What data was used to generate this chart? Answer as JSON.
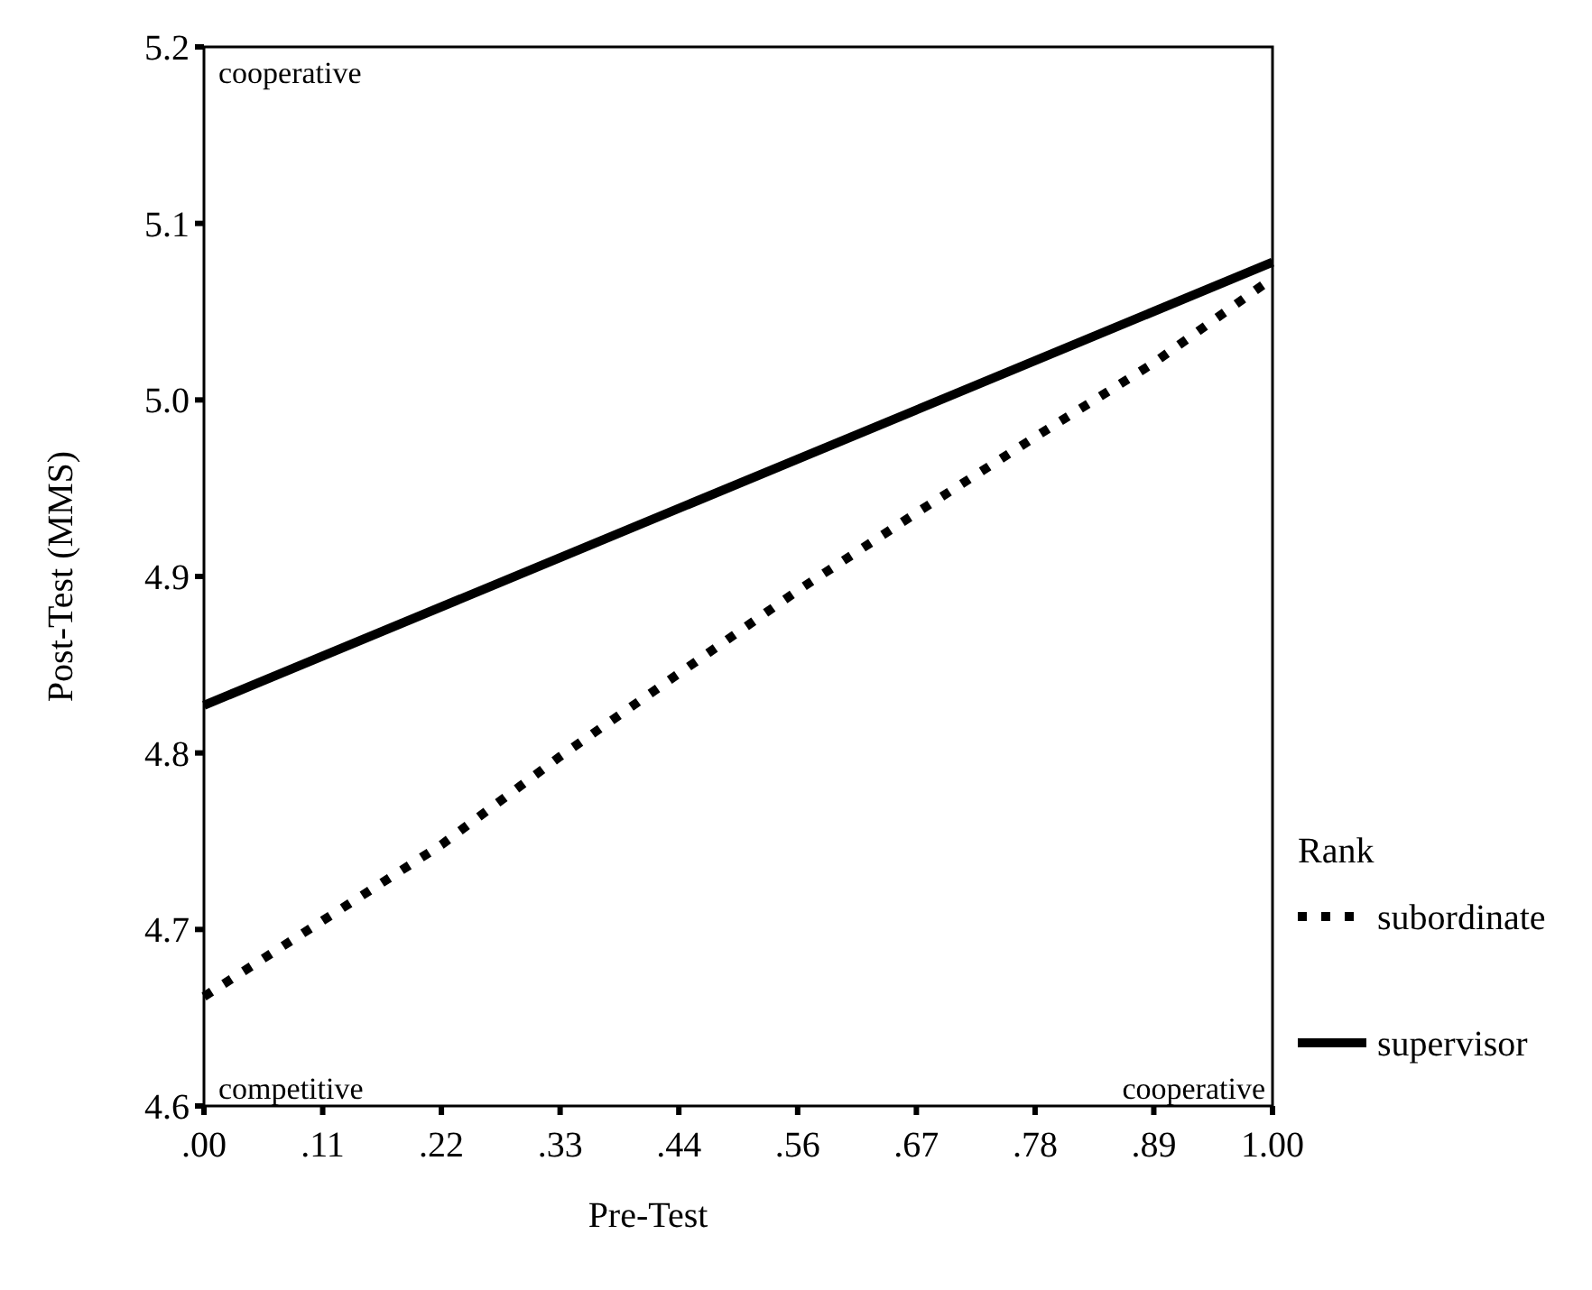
{
  "chart_data": {
    "type": "line",
    "xlabel": "Pre-Test",
    "ylabel": "Post-Test (MMS)",
    "legend_title": "Rank",
    "legend": "right",
    "grid": false,
    "marker": "none",
    "x": [
      0,
      0.1111,
      0.2222,
      0.3333,
      0.4444,
      0.5556,
      0.6667,
      0.7778,
      0.8889,
      1
    ],
    "xlim": [
      0,
      1
    ],
    "ylim": [
      4.6,
      5.2
    ],
    "xticks": [
      {
        "value": 0,
        "label": ".00"
      },
      {
        "value": 0.1111,
        "label": ".11"
      },
      {
        "value": 0.2222,
        "label": ".22"
      },
      {
        "value": 0.3333,
        "label": ".33"
      },
      {
        "value": 0.4444,
        "label": ".44"
      },
      {
        "value": 0.5556,
        "label": ".56"
      },
      {
        "value": 0.6667,
        "label": ".67"
      },
      {
        "value": 0.7778,
        "label": ".78"
      },
      {
        "value": 0.8889,
        "label": ".89"
      },
      {
        "value": 1,
        "label": "1.00"
      }
    ],
    "yticks": [
      4.6,
      4.7,
      4.8,
      4.9,
      {
        "value": 5,
        "label": "5.0"
      },
      5.1,
      5.2
    ],
    "series": [
      {
        "name": "subordinate",
        "color": "#000000",
        "line_style": "dotted",
        "values": [
          4.662,
          4.705,
          4.748,
          4.798,
          4.845,
          4.892,
          4.936,
          4.979,
          5.021,
          5.069
        ]
      },
      {
        "name": "supervisor",
        "color": "#000000",
        "line_style": "solid",
        "x": [
          0,
          1
        ],
        "values": [
          4.827,
          5.078
        ]
      }
    ],
    "annotations": [
      "cooperative",
      "competitive",
      "cooperative"
    ]
  }
}
